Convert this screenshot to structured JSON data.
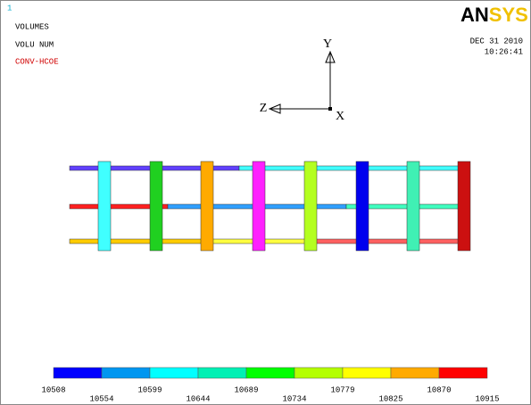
{
  "header": {
    "window_number": "1",
    "lines": [
      "VOLUMES",
      "VOLU NUM",
      "CONV-HCOE"
    ],
    "logo": "ANSYS",
    "date": "DEC 31 2010",
    "time": "10:26:41"
  },
  "triad": {
    "y": "Y",
    "z": "Z",
    "x": "X"
  },
  "legend": {
    "labels": [
      10508,
      10554,
      10599,
      10644,
      10689,
      10734,
      10779,
      10825,
      10870,
      10915
    ],
    "colors": [
      "#0000ff",
      "#0096f0",
      "#00ffff",
      "#00f0b4",
      "#00ff00",
      "#b4ff00",
      "#ffff00",
      "#ffaa00",
      "#ff0000"
    ]
  }
}
